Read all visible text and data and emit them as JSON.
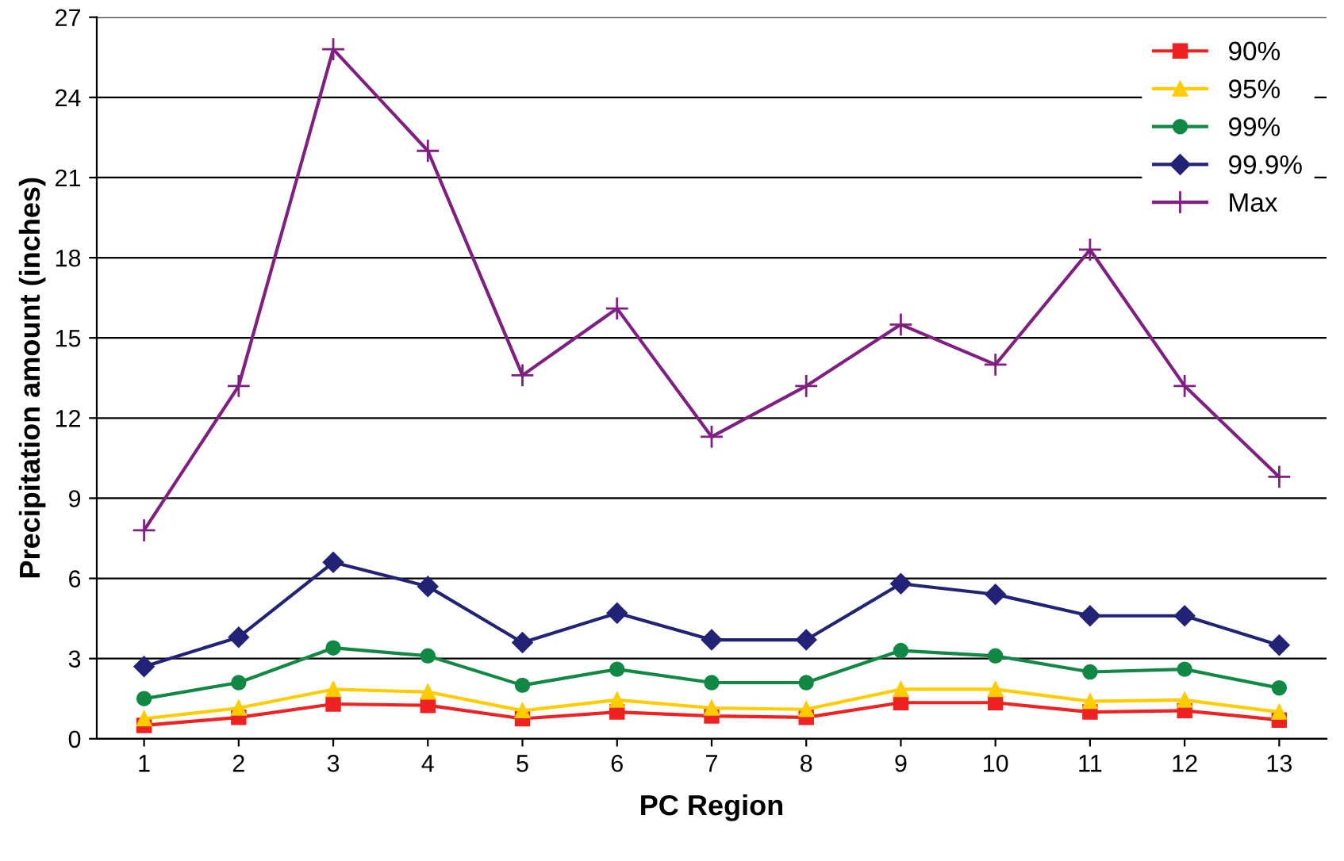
{
  "chart_data": {
    "type": "line",
    "xlabel": "PC Region",
    "ylabel": "Precipitation amount (inches)",
    "categories": [
      "1",
      "2",
      "3",
      "4",
      "5",
      "6",
      "7",
      "8",
      "9",
      "10",
      "11",
      "12",
      "13"
    ],
    "series": [
      {
        "name": "90%",
        "color": "#ee2222",
        "marker": "square",
        "values": [
          0.5,
          0.8,
          1.3,
          1.25,
          0.75,
          1.0,
          0.85,
          0.8,
          1.35,
          1.35,
          1.0,
          1.05,
          0.7
        ]
      },
      {
        "name": "95%",
        "color": "#ffcc00",
        "marker": "triangle",
        "values": [
          0.75,
          1.15,
          1.85,
          1.75,
          1.05,
          1.45,
          1.15,
          1.1,
          1.85,
          1.85,
          1.4,
          1.45,
          1.0
        ]
      },
      {
        "name": "99%",
        "color": "#118844",
        "marker": "circle",
        "values": [
          1.5,
          2.1,
          3.4,
          3.1,
          2.0,
          2.6,
          2.1,
          2.1,
          3.3,
          3.1,
          2.5,
          2.6,
          1.9
        ]
      },
      {
        "name": "99.9%",
        "color": "#222277",
        "marker": "diamond",
        "values": [
          2.7,
          3.8,
          6.6,
          5.7,
          3.6,
          4.7,
          3.7,
          3.7,
          5.8,
          5.4,
          4.6,
          4.6,
          3.5
        ]
      },
      {
        "name": "Max",
        "color": "#7f1f82",
        "marker": "cross",
        "values": [
          7.8,
          13.2,
          25.8,
          22.0,
          13.6,
          16.1,
          11.3,
          13.2,
          15.5,
          14.0,
          18.3,
          13.2,
          9.8
        ]
      }
    ],
    "ylim": [
      0,
      27
    ],
    "yticks": [
      0,
      3,
      6,
      9,
      12,
      15,
      18,
      21,
      24,
      27
    ],
    "grid": "y",
    "legend": "top right",
    "line_style": "solid"
  }
}
